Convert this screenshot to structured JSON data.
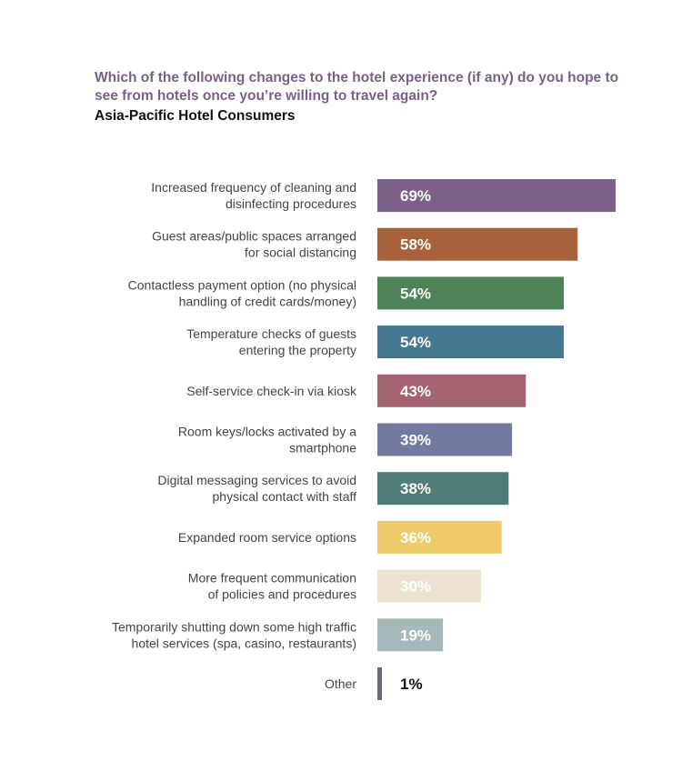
{
  "header": {
    "title": "Which of the following changes to the hotel experience (if any) do you hope to see from hotels once you’re willing to travel again?",
    "subtitle": "Asia-Pacific Hotel Consumers"
  },
  "chart_data": {
    "type": "bar",
    "orientation": "horizontal",
    "title": "Which of the following changes to the hotel experience (if any) do you hope to see from hotels once you’re willing to travel again?",
    "subtitle": "Asia-Pacific Hotel Consumers",
    "xlabel": "",
    "ylabel": "",
    "xlim": [
      0,
      69
    ],
    "grid": false,
    "legend": "none",
    "categories": [
      [
        "Increased frequency of cleaning and",
        "disinfecting procedures"
      ],
      [
        "Guest areas/public spaces arranged",
        "for social distancing"
      ],
      [
        "Contactless payment option (no physical",
        "handling of credit cards/money)"
      ],
      [
        "Temperature checks of guests",
        "entering the property"
      ],
      [
        "Self-service check-in via kiosk"
      ],
      [
        "Room keys/locks activated by a",
        "smartphone"
      ],
      [
        "Digital messaging services to avoid",
        "physical contact with staff"
      ],
      [
        "Expanded room service options"
      ],
      [
        "More frequent communication",
        "of policies and procedures"
      ],
      [
        "Temporarily shutting down some high traffic",
        "hotel services (spa, casino, restaurants)"
      ],
      [
        "Other"
      ]
    ],
    "values": [
      69,
      58,
      54,
      54,
      43,
      39,
      38,
      36,
      30,
      19,
      1
    ],
    "value_labels": [
      "69%",
      "58%",
      "54%",
      "54%",
      "43%",
      "39%",
      "38%",
      "36%",
      "30%",
      "19%",
      "1%"
    ],
    "colors": [
      "#7b6188",
      "#a8623a",
      "#4e8358",
      "#447891",
      "#a3636f",
      "#727aa0",
      "#4f7c76",
      "#efcb6b",
      "#ebe2cf",
      "#a7b8bb",
      "#6a6a76"
    ],
    "value_label_colors": [
      "#ffffff",
      "#ffffff",
      "#ffffff",
      "#ffffff",
      "#ffffff",
      "#ffffff",
      "#ffffff",
      "#ffffff",
      "#ffffff",
      "#ffffff",
      "#111111"
    ]
  }
}
